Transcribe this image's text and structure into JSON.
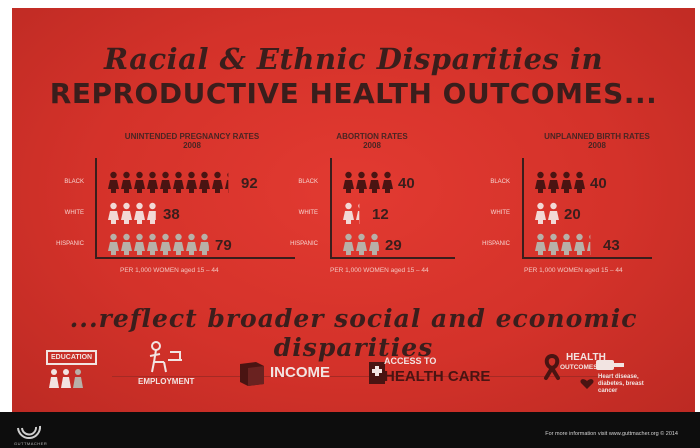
{
  "header": {
    "line1": "Racial & Ethnic Disparities in",
    "line2": "REPRODUCTIVE HEALTH OUTCOMES...",
    "line3": "...reflect broader social and economic disparities"
  },
  "chart_data": [
    {
      "type": "bar",
      "title": "UNINTENDED PREGNANCY RATES",
      "subtitle": "2008",
      "categories": [
        "BLACK",
        "WHITE",
        "HISPANIC"
      ],
      "values": [
        92,
        38,
        79
      ],
      "unit_note": "PER 1,000 WOMEN aged 15 – 44",
      "icon": "woman-figure-icon",
      "colors": [
        "#4a1412",
        "#f2d9d6",
        "#b8b0a8"
      ]
    },
    {
      "type": "bar",
      "title": "ABORTION RATES",
      "subtitle": "2008",
      "categories": [
        "BLACK",
        "WHITE",
        "HISPANIC"
      ],
      "values": [
        40,
        12,
        29
      ],
      "unit_note": "PER 1,000 WOMEN aged 15 – 44",
      "icon": "woman-figure-icon",
      "colors": [
        "#4a1412",
        "#f2d9d6",
        "#b8b0a8"
      ]
    },
    {
      "type": "bar",
      "title": "UNPLANNED BIRTH RATES",
      "subtitle": "2008",
      "categories": [
        "BLACK",
        "WHITE",
        "HISPANIC"
      ],
      "values": [
        40,
        20,
        43
      ],
      "unit_note": "PER 1,000 WOMEN aged 15 – 44",
      "icon": "woman-figure-icon",
      "colors": [
        "#4a1412",
        "#f2d9d6",
        "#b8b0a8"
      ]
    }
  ],
  "themes": {
    "education": "EDUCATION",
    "employment": "EMPLOYMENT",
    "income": "INCOME",
    "access_line1": "ACCESS TO",
    "access_line2": "HEALTH CARE",
    "health_line1": "HEALTH",
    "health_line2": "OUTCOMES",
    "health_note": "Heart disease, diabetes, breast cancer"
  },
  "footer": {
    "credit": "For more information visit www.guttmacher.org © 2014",
    "logo_text": "GUTTMACHER"
  }
}
